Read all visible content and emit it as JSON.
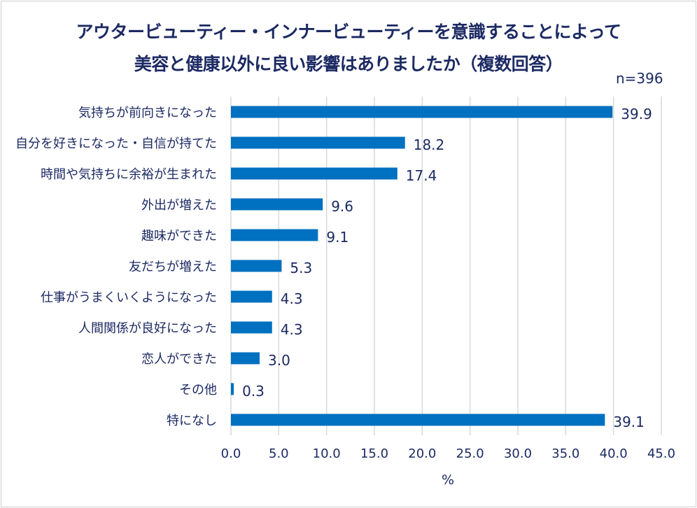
{
  "chart_data": {
    "type": "bar",
    "orientation": "horizontal",
    "title": [
      "アウタービューティー・インナービューティーを意識することによって",
      "美容と健康以外に良い影響はありましたか（複数回答）"
    ],
    "subtitle": "n=396",
    "xlabel": "%",
    "ylabel": "",
    "xlim": [
      0,
      45
    ],
    "xticks": [
      "0.0",
      "5.0",
      "10.0",
      "15.0",
      "20.0",
      "25.0",
      "30.0",
      "35.0",
      "40.0",
      "45.0"
    ],
    "grid": true,
    "categories": [
      "気持ちが前向きになった",
      "自分を好きになった・自信が持てた",
      "時間や気持ちに余裕が生まれた",
      "外出が増えた",
      "趣味ができた",
      "友だちが増えた",
      "仕事がうまくいくようになった",
      "人間関係が良好になった",
      "恋人ができた",
      "その他",
      "特になし"
    ],
    "values": [
      39.9,
      18.2,
      17.4,
      9.6,
      9.1,
      5.3,
      4.3,
      4.3,
      3.0,
      0.3,
      39.1
    ],
    "data_labels": [
      "39.9",
      "18.2",
      "17.4",
      "9.6",
      "9.1",
      "5.3",
      "4.3",
      "4.3",
      "3.0",
      "0.3",
      "39.1"
    ],
    "colors": {
      "bar": "#0070C0",
      "text": "#1c2a63",
      "grid": "#d9d9d9"
    }
  }
}
